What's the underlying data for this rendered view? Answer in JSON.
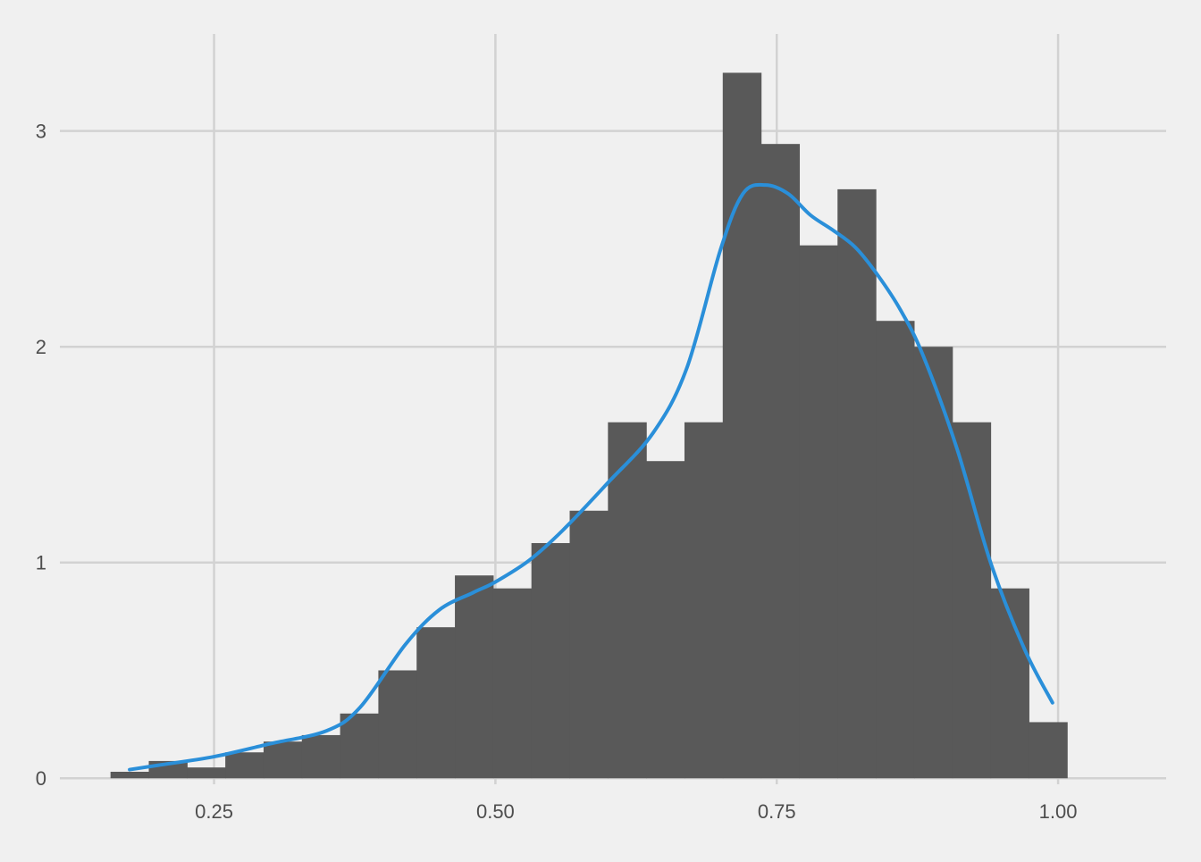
{
  "chart_data": {
    "type": "bar",
    "title": "",
    "xlabel": "",
    "ylabel": "",
    "xlim": [
      0.113,
      1.096
    ],
    "ylim": [
      -0.028,
      3.45
    ],
    "grid": true,
    "x_ticks": [
      {
        "value": 0.25,
        "label": "0.25"
      },
      {
        "value": 0.5,
        "label": "0.50"
      },
      {
        "value": 0.75,
        "label": "0.75"
      },
      {
        "value": 1.0,
        "label": "1.00"
      }
    ],
    "y_ticks": [
      {
        "value": 0,
        "label": "0"
      },
      {
        "value": 1,
        "label": "1"
      },
      {
        "value": 2,
        "label": "2"
      },
      {
        "value": 3,
        "label": "3"
      }
    ],
    "bin_edges": [
      0.158,
      0.192,
      0.226,
      0.26,
      0.294,
      0.328,
      0.362,
      0.396,
      0.43,
      0.464,
      0.498,
      0.532,
      0.566,
      0.6,
      0.634,
      0.668,
      0.702,
      0.736,
      0.77,
      0.804,
      0.838,
      0.872,
      0.906,
      0.94,
      0.974,
      1.008
    ],
    "series": [
      {
        "type": "histogram",
        "values": [
          0.03,
          0.08,
          0.05,
          0.12,
          0.17,
          0.2,
          0.3,
          0.5,
          0.7,
          0.94,
          0.88,
          1.09,
          1.24,
          1.65,
          1.47,
          1.65,
          3.27,
          2.94,
          2.47,
          2.73,
          2.12,
          2.0,
          1.65,
          0.88,
          0.26
        ],
        "color": "#595959"
      },
      {
        "type": "density",
        "x": [
          0.175,
          0.2,
          0.25,
          0.3,
          0.35,
          0.38,
          0.42,
          0.45,
          0.48,
          0.5,
          0.53,
          0.56,
          0.6,
          0.64,
          0.67,
          0.7,
          0.72,
          0.74,
          0.76,
          0.78,
          0.8,
          0.82,
          0.84,
          0.86,
          0.88,
          0.91,
          0.94,
          0.97,
          0.995
        ],
        "y": [
          0.04,
          0.06,
          0.1,
          0.16,
          0.22,
          0.33,
          0.62,
          0.78,
          0.86,
          0.91,
          1.01,
          1.15,
          1.37,
          1.6,
          1.9,
          2.45,
          2.71,
          2.75,
          2.71,
          2.61,
          2.54,
          2.46,
          2.33,
          2.17,
          1.96,
          1.53,
          1.0,
          0.6,
          0.35
        ],
        "color": "#2a8fd9"
      }
    ]
  }
}
